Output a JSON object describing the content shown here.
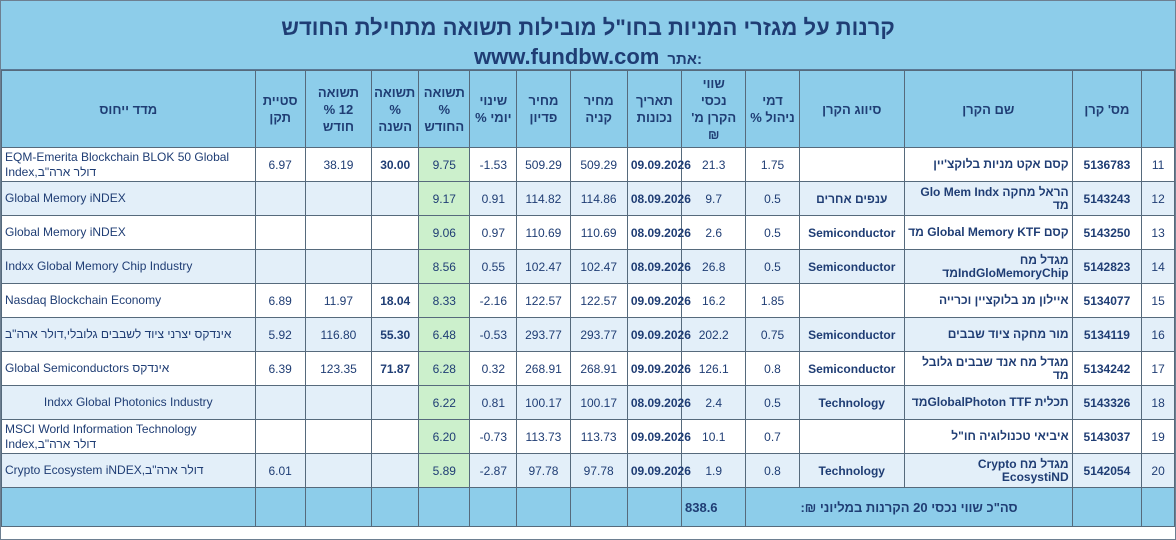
{
  "header": {
    "title": "קרנות על מגזרי המניות בחו\"ל מובילות תשואה מתחילת החודש",
    "site_label": "אתר:",
    "site_url": "www.fundbw.com"
  },
  "columns": {
    "index": "",
    "fund_id": "מס' קרן",
    "fund_name": "שם הקרן",
    "classification": "סיווג הקרן",
    "mgmt_fee": "דמי\nניהול %",
    "assets": "שווי\nנכסי\nהקרן מ'\n₪",
    "date": "תאריך\nנכונות",
    "buy_price": "מחיר\nקניה",
    "redeem_price": "מחיר\nפדיון",
    "daily_change": "שינוי\nיומי %",
    "month_return": "תשואה\n%\nהחודש",
    "year_return": "תשואה\n%\nהשנה",
    "return_12m": "תשואה\n12 %\nחודש",
    "deviation": "סטיית\nתקן",
    "tracking_index": "מדד ייחוס"
  },
  "rows": [
    {
      "index": "11",
      "fund_id": "5136783",
      "fund_name": "קסם אקט מניות בלוקצ'יין",
      "classification": "",
      "mgmt_fee": "1.75",
      "assets": "21.3",
      "date": "09.09.2026",
      "buy_price": "509.29",
      "redeem_price": "509.29",
      "daily_change": "-1.53",
      "month_return": "9.75",
      "year_return": "30.00",
      "return_12m": "38.19",
      "deviation": "6.97",
      "tracking_index": "EQM-Emerita Blockchain BLOK 50 Global Index,דולר ארה\"ב"
    },
    {
      "index": "12",
      "fund_id": "5143243",
      "fund_name": "הראל מחקה Glo Mem Indx מד",
      "classification": "ענפים אחרים",
      "mgmt_fee": "0.5",
      "assets": "9.7",
      "date": "08.09.2026",
      "buy_price": "114.86",
      "redeem_price": "114.82",
      "daily_change": "0.91",
      "month_return": "9.17",
      "year_return": "",
      "return_12m": "",
      "deviation": "",
      "tracking_index": "Global Memory iNDEX"
    },
    {
      "index": "13",
      "fund_id": "5143250",
      "fund_name": "קסם Global Memory KTF מד",
      "classification": "Semiconductor",
      "mgmt_fee": "0.5",
      "assets": "2.6",
      "date": "08.09.2026",
      "buy_price": "110.69",
      "redeem_price": "110.69",
      "daily_change": "0.97",
      "month_return": "9.06",
      "year_return": "",
      "return_12m": "",
      "deviation": "",
      "tracking_index": "Global Memory iNDEX"
    },
    {
      "index": "14",
      "fund_id": "5142823",
      "fund_name": "מגדל מח IndGloMemoryChipמד",
      "classification": "Semiconductor",
      "mgmt_fee": "0.5",
      "assets": "26.8",
      "date": "08.09.2026",
      "buy_price": "102.47",
      "redeem_price": "102.47",
      "daily_change": "0.55",
      "month_return": "8.56",
      "year_return": "",
      "return_12m": "",
      "deviation": "",
      "tracking_index": "Indxx Global Memory Chip Industry"
    },
    {
      "index": "15",
      "fund_id": "5134077",
      "fund_name": "איילון מנ בלוקציין וכרייה",
      "classification": "",
      "mgmt_fee": "1.85",
      "assets": "16.2",
      "date": "09.09.2026",
      "buy_price": "122.57",
      "redeem_price": "122.57",
      "daily_change": "-2.16",
      "month_return": "8.33",
      "year_return": "18.04",
      "return_12m": "11.97",
      "deviation": "6.89",
      "tracking_index": "Nasdaq Blockchain Economy"
    },
    {
      "index": "16",
      "fund_id": "5134119",
      "fund_name": "מור מחקה ציוד שבבים",
      "classification": "Semiconductor",
      "mgmt_fee": "0.75",
      "assets": "202.2",
      "date": "09.09.2026",
      "buy_price": "293.77",
      "redeem_price": "293.77",
      "daily_change": "-0.53",
      "month_return": "6.48",
      "year_return": "55.30",
      "return_12m": "116.80",
      "deviation": "5.92",
      "tracking_index": "אינדקס יצרני ציוד לשבבים גלובלי,דולר ארה\"ב"
    },
    {
      "index": "17",
      "fund_id": "5134242",
      "fund_name": "מגדל מח אנד שבבים גלובל מד",
      "classification": "Semiconductor",
      "mgmt_fee": "0.8",
      "assets": "126.1",
      "date": "09.09.2026",
      "buy_price": "268.91",
      "redeem_price": "268.91",
      "daily_change": "0.32",
      "month_return": "6.28",
      "year_return": "71.87",
      "return_12m": "123.35",
      "deviation": "6.39",
      "tracking_index": "Global Semiconductors אינדקס"
    },
    {
      "index": "18",
      "fund_id": "5143326",
      "fund_name": "תכלית GlobalPhoton TTFמד",
      "classification": "Technology",
      "mgmt_fee": "0.5",
      "assets": "2.4",
      "date": "08.09.2026",
      "buy_price": "100.17",
      "redeem_price": "100.17",
      "daily_change": "0.81",
      "month_return": "6.22",
      "year_return": "",
      "return_12m": "",
      "deviation": "",
      "tracking_index": "Indxx Global Photonics Industry"
    },
    {
      "index": "19",
      "fund_id": "5143037",
      "fund_name": "איביאי טכנולוגיה חו\"ל",
      "classification": "",
      "mgmt_fee": "0.7",
      "assets": "10.1",
      "date": "09.09.2026",
      "buy_price": "113.73",
      "redeem_price": "113.73",
      "daily_change": "-0.73",
      "month_return": "6.20",
      "year_return": "",
      "return_12m": "",
      "deviation": "",
      "tracking_index": "MSCI World Information Technology Index,דולר ארה\"ב"
    },
    {
      "index": "20",
      "fund_id": "5142054",
      "fund_name": "מגדל מח Crypto EcosystiND",
      "classification": "Technology",
      "mgmt_fee": "0.8",
      "assets": "1.9",
      "date": "09.09.2026",
      "buy_price": "97.78",
      "redeem_price": "97.78",
      "daily_change": "-2.87",
      "month_return": "5.89",
      "year_return": "",
      "return_12m": "",
      "deviation": "6.01",
      "tracking_index": "Crypto Ecosystem iNDEX,דולר ארה\"ב"
    }
  ],
  "total": {
    "label": "סה\"כ שווי נכסי 20 הקרנות במליוני ₪:",
    "value": "838.6"
  }
}
